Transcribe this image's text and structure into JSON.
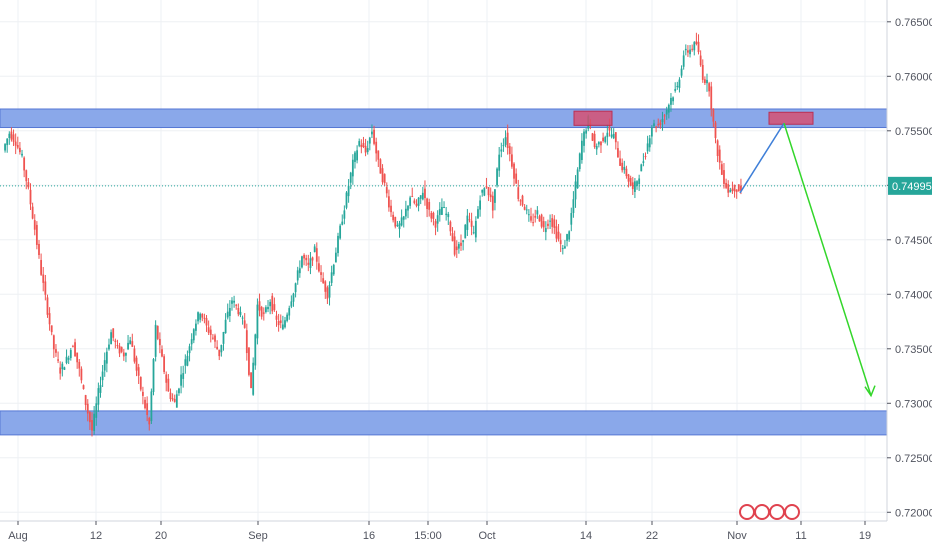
{
  "chart_data": {
    "type": "candlestick",
    "x_ticks": [
      "Aug",
      "12",
      "20",
      "Sep",
      "16",
      "15:00",
      "Oct",
      "14",
      "22",
      "Nov",
      "11",
      "19"
    ],
    "y_ticks": [
      "0.76500",
      "0.76000",
      "0.75500",
      "0.75000",
      "0.74500",
      "0.74000",
      "0.73500",
      "0.73000",
      "0.72500",
      "0.72000"
    ],
    "ylim": [
      0.7192,
      0.767
    ],
    "current_price": {
      "label": "0.74995",
      "value": 0.74995
    },
    "zones": [
      {
        "kind": "resistance",
        "from": 0.7553,
        "to": 0.757
      },
      {
        "kind": "support",
        "from": 0.7271,
        "to": 0.7293
      }
    ],
    "highlight_boxes": [
      {
        "x_from": "Oct 13",
        "x_to": "Oct 19",
        "from": 0.7555,
        "to": 0.7568
      },
      {
        "x_from": "Nov 7",
        "x_to": "Nov 12",
        "from": 0.7556,
        "to": 0.7567
      }
    ],
    "projection": {
      "up_leg": {
        "from": {
          "x": "Nov 2",
          "y": 0.7493
        },
        "to": {
          "x": "Nov 9",
          "y": 0.7557
        }
      },
      "down_leg": {
        "from": {
          "x": "Nov 9",
          "y": 0.7557
        },
        "to": {
          "x": "Nov 18",
          "y": 0.7307
        }
      }
    },
    "price_path": [
      0.7532,
      0.7548,
      0.754,
      0.7525,
      0.7495,
      0.746,
      0.742,
      0.7385,
      0.735,
      0.733,
      0.734,
      0.7355,
      0.733,
      0.73,
      0.7275,
      0.731,
      0.734,
      0.7365,
      0.735,
      0.7345,
      0.736,
      0.733,
      0.7305,
      0.728,
      0.737,
      0.734,
      0.731,
      0.73,
      0.7325,
      0.7345,
      0.737,
      0.7385,
      0.737,
      0.736,
      0.7345,
      0.7375,
      0.7395,
      0.7385,
      0.737,
      0.731,
      0.739,
      0.738,
      0.7395,
      0.7375,
      0.737,
      0.739,
      0.741,
      0.7435,
      0.7425,
      0.744,
      0.7415,
      0.74,
      0.743,
      0.746,
      0.749,
      0.752,
      0.754,
      0.753,
      0.755,
      0.752,
      0.75,
      0.7475,
      0.746,
      0.747,
      0.749,
      0.748,
      0.7495,
      0.7475,
      0.7465,
      0.748,
      0.747,
      0.744,
      0.7445,
      0.747,
      0.7455,
      0.749,
      0.75,
      0.748,
      0.753,
      0.7545,
      0.752,
      0.749,
      0.748,
      0.7465,
      0.7475,
      0.746,
      0.747,
      0.7455,
      0.744,
      0.746,
      0.75,
      0.754,
      0.756,
      0.7535,
      0.754,
      0.755,
      0.7545,
      0.752,
      0.751,
      0.7495,
      0.751,
      0.753,
      0.7555,
      0.7555,
      0.7565,
      0.758,
      0.759,
      0.762,
      0.7625,
      0.763,
      0.76,
      0.759,
      0.754,
      0.751,
      0.7495,
      0.7498,
      0.7495
    ]
  }
}
